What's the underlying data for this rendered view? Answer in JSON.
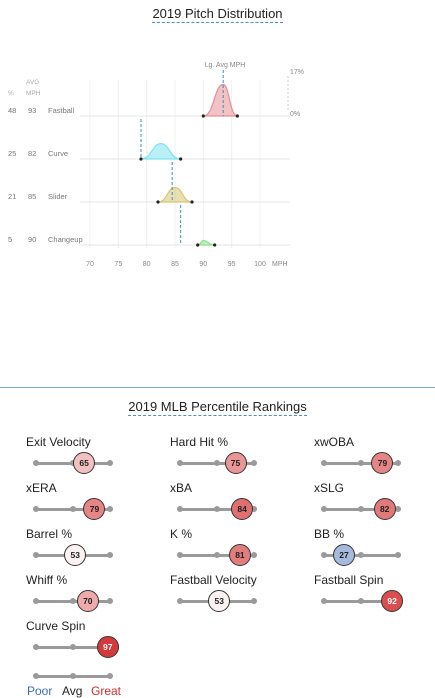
{
  "distribution": {
    "title": "2019 Pitch Distribution",
    "header": {
      "pct": "%",
      "avg_line1": "AVG",
      "avg_line2": "MPH",
      "lg_avg": "Lg. Avg MPH",
      "max_pct": "17%",
      "min_pct": "0%"
    },
    "pitches": [
      {
        "pct": "48",
        "mph": "93",
        "name": "Fastball",
        "range": [
          90,
          96
        ],
        "peak": 93.5,
        "height": 0.72,
        "lg_avg": 93.5,
        "color": "#e78f96"
      },
      {
        "pct": "25",
        "mph": "82",
        "name": "Curve",
        "range": [
          79,
          86
        ],
        "peak": 82.5,
        "height": 0.35,
        "lg_avg": 79,
        "color": "#7fe3ef"
      },
      {
        "pct": "21",
        "mph": "85",
        "name": "Slider",
        "range": [
          82,
          88
        ],
        "peak": 85,
        "height": 0.33,
        "lg_avg": 84.5,
        "color": "#d6c775"
      },
      {
        "pct": "5",
        "mph": "90",
        "name": "Changeup",
        "range": [
          89,
          92
        ],
        "peak": 90,
        "height": 0.1,
        "lg_avg": 86,
        "color": "#8fe08f"
      }
    ],
    "x_ticks": [
      "70",
      "75",
      "80",
      "85",
      "90",
      "95",
      "100"
    ],
    "x_unit": "MPH",
    "x_range": [
      70,
      100
    ]
  },
  "rankings": {
    "title": "2019 MLB Percentile Rankings",
    "metrics": [
      {
        "label": "Exit Velocity",
        "value": 65
      },
      {
        "label": "Hard Hit %",
        "value": 75
      },
      {
        "label": "xwOBA",
        "value": 79
      },
      {
        "label": "xERA",
        "value": 79
      },
      {
        "label": "xBA",
        "value": 84
      },
      {
        "label": "xSLG",
        "value": 82
      },
      {
        "label": "Barrel %",
        "value": 53
      },
      {
        "label": "K %",
        "value": 81
      },
      {
        "label": "BB %",
        "value": 27
      },
      {
        "label": "Whiff %",
        "value": 70
      },
      {
        "label": "Fastball Velocity",
        "value": 53
      },
      {
        "label": "Fastball Spin",
        "value": 92
      },
      {
        "label": "Curve Spin",
        "value": 97
      }
    ],
    "legend": {
      "poor": "Poor",
      "avg": "Avg",
      "great": "Great"
    },
    "colors": {
      "poor": "#3d6bb3",
      "avg": "#222222",
      "great": "#d22d2d"
    }
  }
}
